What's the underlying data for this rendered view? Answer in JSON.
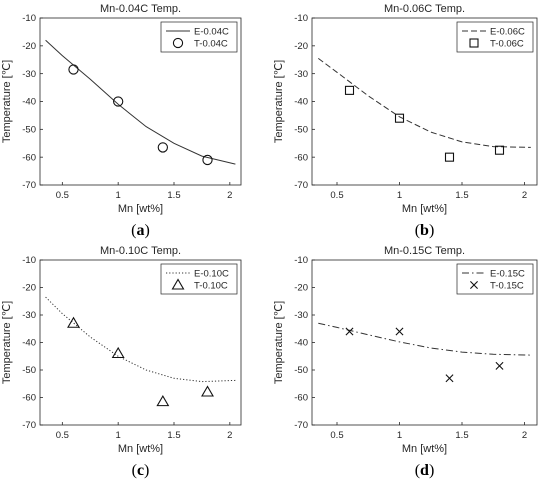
{
  "chart_data": [
    {
      "type": "line",
      "panel_label": "a",
      "title": "Mn-0.04C Temp.",
      "xlabel": "Mn [wt%]",
      "ylabel": "Temperature [℃]",
      "xlim": [
        0.3,
        2.1
      ],
      "ylim": [
        -70,
        -10
      ],
      "xticks": [
        0.5,
        1,
        1.5,
        2
      ],
      "yticks": [
        -70,
        -60,
        -50,
        -40,
        -30,
        -20,
        -10
      ],
      "legend_position": "top-right",
      "series": [
        {
          "name": "E-0.04C",
          "style": "solid",
          "x": [
            0.35,
            0.5,
            0.75,
            1.0,
            1.25,
            1.5,
            1.75,
            2.05
          ],
          "y": [
            -18.0,
            -23.5,
            -32.0,
            -41.0,
            -49.0,
            -55.0,
            -59.6,
            -62.5
          ]
        },
        {
          "name": "T-0.04C",
          "marker": "circle",
          "x": [
            0.6,
            1.0,
            1.4,
            1.8
          ],
          "y": [
            -28.5,
            -40.0,
            -56.5,
            -61.0
          ]
        }
      ]
    },
    {
      "type": "line",
      "panel_label": "b",
      "title": "Mn-0.06C Temp.",
      "xlabel": "Mn [wt%]",
      "ylabel": "Temperature [℃]",
      "xlim": [
        0.3,
        2.1
      ],
      "ylim": [
        -70,
        -10
      ],
      "xticks": [
        0.5,
        1,
        1.5,
        2
      ],
      "yticks": [
        -70,
        -60,
        -50,
        -40,
        -30,
        -20,
        -10
      ],
      "legend_position": "top-right",
      "series": [
        {
          "name": "E-0.06C",
          "style": "dashed",
          "x": [
            0.35,
            0.5,
            0.75,
            1.0,
            1.25,
            1.5,
            1.75,
            2.05
          ],
          "y": [
            -24.5,
            -29.5,
            -38.0,
            -45.5,
            -51.0,
            -54.5,
            -56.2,
            -56.5
          ]
        },
        {
          "name": "T-0.06C",
          "marker": "square",
          "x": [
            0.6,
            1.0,
            1.4,
            1.8
          ],
          "y": [
            -36.0,
            -46.0,
            -60.0,
            -57.5
          ]
        }
      ]
    },
    {
      "type": "line",
      "panel_label": "c",
      "title": "Mn-0.10C Temp.",
      "xlabel": "Mn [wt%]",
      "ylabel": "Temperature [℃]",
      "xlim": [
        0.3,
        2.1
      ],
      "ylim": [
        -70,
        -10
      ],
      "xticks": [
        0.5,
        1,
        1.5,
        2
      ],
      "yticks": [
        -70,
        -60,
        -50,
        -40,
        -30,
        -20,
        -10
      ],
      "legend_position": "top-right",
      "series": [
        {
          "name": "E-0.10C",
          "style": "dotted",
          "x": [
            0.35,
            0.5,
            0.75,
            1.0,
            1.25,
            1.5,
            1.75,
            2.05
          ],
          "y": [
            -23.5,
            -29.5,
            -38.0,
            -45.0,
            -50.0,
            -53.0,
            -54.2,
            -53.8
          ]
        },
        {
          "name": "T-0.10C",
          "marker": "triangle",
          "x": [
            0.6,
            1.0,
            1.4,
            1.8
          ],
          "y": [
            -33.0,
            -44.0,
            -61.5,
            -58.0
          ]
        }
      ]
    },
    {
      "type": "line",
      "panel_label": "d",
      "title": "Mn-0.15C Temp.",
      "xlabel": "Mn [wt%]",
      "ylabel": "Temperature [℃]",
      "xlim": [
        0.3,
        2.1
      ],
      "ylim": [
        -70,
        -10
      ],
      "xticks": [
        0.5,
        1,
        1.5,
        2
      ],
      "yticks": [
        -70,
        -60,
        -50,
        -40,
        -30,
        -20,
        -10
      ],
      "legend_position": "top-right",
      "series": [
        {
          "name": "E-0.15C",
          "style": "dashdot",
          "x": [
            0.35,
            0.5,
            0.75,
            1.0,
            1.25,
            1.5,
            1.75,
            2.05
          ],
          "y": [
            -33.0,
            -34.5,
            -37.2,
            -39.8,
            -42.0,
            -43.5,
            -44.3,
            -44.6
          ]
        },
        {
          "name": "T-0.15C",
          "marker": "x",
          "x": [
            0.6,
            1.0,
            1.4,
            1.8
          ],
          "y": [
            -36.0,
            -36.0,
            -53.0,
            -48.5
          ]
        }
      ]
    }
  ]
}
